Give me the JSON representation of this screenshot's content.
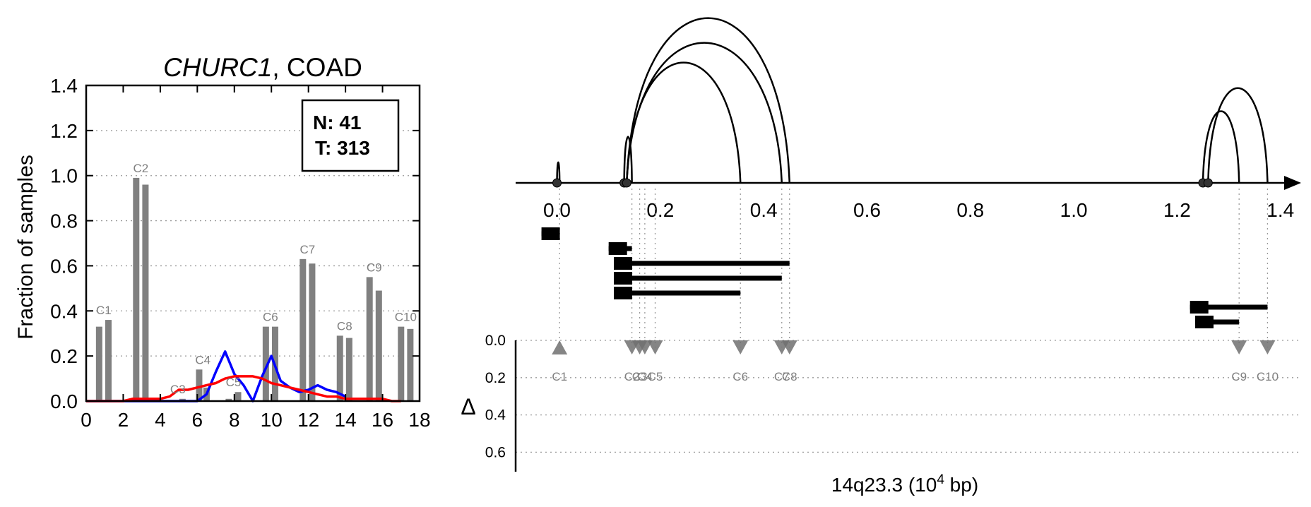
{
  "colors": {
    "bar": "#808080",
    "bar_label": "#808080",
    "normal_line": "#0000ff",
    "tumor_line": "#ff0000",
    "axis": "#000000",
    "grid": "#999999",
    "marker": "#707070"
  },
  "chart_data": [
    {
      "type": "bar",
      "title_gene": "CHURC1",
      "title_rest": ", COAD",
      "xlabel": "",
      "ylabel": "Fraction of samples",
      "xlim": [
        0,
        18
      ],
      "ylim": [
        0,
        1.4
      ],
      "x_ticks": [
        "0",
        "2",
        "4",
        "6",
        "8",
        "10",
        "12",
        "14",
        "16",
        "18"
      ],
      "y_ticks": [
        "0.0",
        "0.2",
        "0.4",
        "0.6",
        "0.8",
        "1.0",
        "1.2",
        "1.4"
      ],
      "grid": "horizontal dotted",
      "inset": [
        "N: 41",
        "T: 313"
      ],
      "bars": [
        {
          "label": "C1",
          "x": [
            0.7,
            1.2
          ],
          "values": [
            0.33,
            0.36
          ]
        },
        {
          "label": "C2",
          "x": [
            2.7,
            3.2
          ],
          "values": [
            0.99,
            0.96
          ]
        },
        {
          "label": "C3",
          "x": [
            4.7,
            5.2
          ],
          "values": [
            0.0,
            0.01
          ]
        },
        {
          "label": "C4",
          "x": [
            6.1,
            6.5
          ],
          "values": [
            0.14,
            0.06
          ]
        },
        {
          "label": "C5",
          "x": [
            7.7,
            8.2
          ],
          "values": [
            0.01,
            0.04
          ]
        },
        {
          "label": "C6",
          "x": [
            9.7,
            10.2
          ],
          "values": [
            0.33,
            0.33
          ]
        },
        {
          "label": "C7",
          "x": [
            11.7,
            12.2
          ],
          "values": [
            0.63,
            0.61
          ]
        },
        {
          "label": "C8",
          "x": [
            13.7,
            14.2
          ],
          "values": [
            0.29,
            0.28
          ]
        },
        {
          "label": "C9",
          "x": [
            15.3,
            15.8
          ],
          "values": [
            0.55,
            0.49
          ]
        },
        {
          "label": "C10",
          "x": [
            17.0,
            17.5
          ],
          "values": [
            0.33,
            0.32
          ]
        }
      ],
      "series": [
        {
          "color_key": "normal_line",
          "x": [
            0,
            0.5,
            1,
            1.5,
            2,
            2.5,
            3,
            3.5,
            4,
            4.5,
            5,
            5.5,
            6,
            6.5,
            7,
            7.5,
            8,
            8.5,
            9,
            9.5,
            10,
            10.5,
            11,
            11.5,
            12,
            12.5,
            13,
            13.5,
            14
          ],
          "y": [
            0,
            0,
            0,
            0,
            0,
            0,
            0,
            0,
            0,
            0,
            0,
            0,
            0,
            0.03,
            0.13,
            0.22,
            0.12,
            0.07,
            0,
            0.11,
            0.2,
            0.09,
            0.06,
            0.04,
            0.05,
            0.07,
            0.05,
            0.04,
            0.02
          ]
        },
        {
          "color_key": "tumor_line",
          "x": [
            0,
            1,
            2,
            2.5,
            3,
            3.5,
            4,
            4.5,
            5,
            5.5,
            6,
            6.5,
            7,
            7.5,
            8,
            8.5,
            9,
            9.5,
            10,
            10.5,
            11,
            11.5,
            12,
            12.5,
            13,
            13.5,
            14,
            14.5,
            15,
            15.5,
            16,
            16.5,
            17
          ],
          "y": [
            0,
            0,
            0,
            0.01,
            0.01,
            0.01,
            0.01,
            0.02,
            0.05,
            0.05,
            0.06,
            0.07,
            0.08,
            0.1,
            0.11,
            0.11,
            0.11,
            0.1,
            0.08,
            0.07,
            0.06,
            0.05,
            0.04,
            0.03,
            0.02,
            0.02,
            0.01,
            0.01,
            0.01,
            0.01,
            0.01,
            0.0,
            0.0
          ]
        }
      ]
    },
    {
      "type": "arc-diagram",
      "xlabel_main": "14q23.3 (10",
      "xlabel_exp": "4",
      "xlabel_tail": " bp)",
      "ylabel": "Δ",
      "xlim": [
        -0.08,
        1.44
      ],
      "x_ticks": [
        "0.0",
        "0.2",
        "0.4",
        "0.6",
        "0.8",
        "1.0",
        "1.2",
        "1.4"
      ],
      "delta_ticks": [
        "0.0",
        "0.2",
        "0.4",
        "0.6"
      ],
      "delta_lim": [
        0,
        0.7
      ],
      "grid": "horizontal dotted (lower panel)",
      "junction_nodes": [
        0.0,
        0.13,
        0.135,
        1.25,
        1.26
      ],
      "arcs": [
        {
          "start": 0.0,
          "end": 0.005,
          "height": 0.25
        },
        {
          "start": 0.13,
          "end": 0.145,
          "height": 0.56
        },
        {
          "start": 0.135,
          "end": 0.355,
          "height": 1.46
        },
        {
          "start": 0.135,
          "end": 0.435,
          "height": 1.7
        },
        {
          "start": 0.135,
          "end": 0.45,
          "height": 2.0
        },
        {
          "start": 1.25,
          "end": 1.32,
          "height": 0.87
        },
        {
          "start": 1.26,
          "end": 1.375,
          "height": 1.15
        }
      ],
      "transcripts": [
        {
          "row": 0,
          "start": -0.03,
          "end": 0.005
        },
        {
          "row": 1,
          "start": 0.1,
          "end": 0.145
        },
        {
          "row": 2,
          "start": 0.11,
          "end": 0.45
        },
        {
          "row": 3,
          "start": 0.11,
          "end": 0.435
        },
        {
          "row": 4,
          "start": 0.11,
          "end": 0.355
        },
        {
          "row": 5,
          "start": 1.225,
          "end": 1.375
        },
        {
          "row": 6,
          "start": 1.235,
          "end": 1.32
        }
      ],
      "clusters": [
        {
          "label": "C1",
          "x": 0.005,
          "delta": 0.0,
          "up": true
        },
        {
          "label": "C2",
          "x": 0.145,
          "delta": 0.0,
          "up": false
        },
        {
          "label": "C3",
          "x": 0.16,
          "delta": 0.0,
          "up": false
        },
        {
          "label": "C4",
          "x": 0.17,
          "delta": 0.0,
          "up": false
        },
        {
          "label": "C5",
          "x": 0.19,
          "delta": 0.0,
          "up": false
        },
        {
          "label": "C6",
          "x": 0.355,
          "delta": 0.0,
          "up": false
        },
        {
          "label": "C7",
          "x": 0.435,
          "delta": 0.0,
          "up": false
        },
        {
          "label": "C8",
          "x": 0.45,
          "delta": 0.0,
          "up": false
        },
        {
          "label": "C9",
          "x": 1.32,
          "delta": 0.0,
          "up": false
        },
        {
          "label": "C10",
          "x": 1.375,
          "delta": 0.0,
          "up": false
        }
      ]
    }
  ]
}
